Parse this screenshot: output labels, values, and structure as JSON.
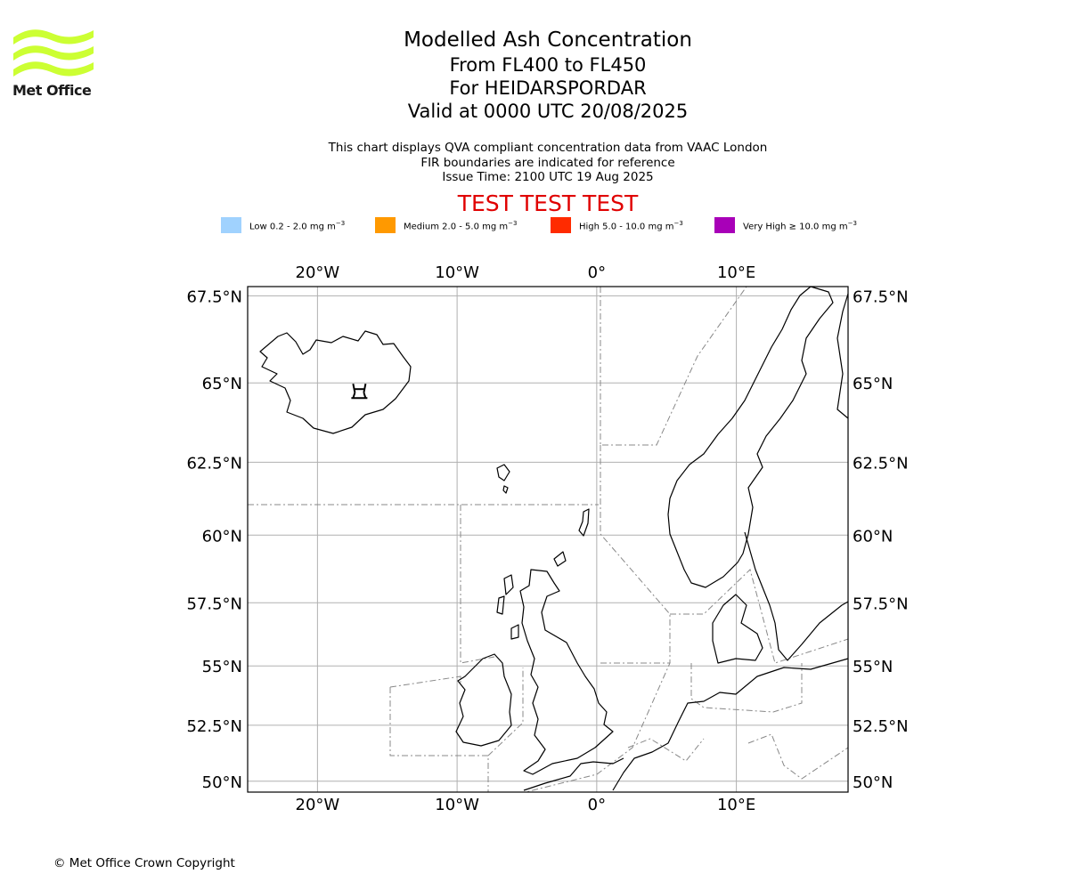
{
  "logo": {
    "text": "Met Office",
    "color": "#ccff33"
  },
  "title": {
    "line1": "Modelled Ash Concentration",
    "line2": "From FL400 to FL450",
    "line3": "For HEIDARSPORDAR",
    "line4": "Valid at 0000 UTC 20/08/2025"
  },
  "subtitle": {
    "line1": "This chart displays QVA compliant concentration data from VAAC London",
    "line2": "FIR boundaries are indicated for reference",
    "line3": "Issue Time: 2100 UTC 19 Aug 2025"
  },
  "test_banner": "TEST TEST TEST",
  "legend": [
    {
      "label": "Low 0.2 - 2.0 mg m",
      "unit_sup": "−3",
      "color": "#a0d2fe"
    },
    {
      "label": "Medium 2.0 - 5.0 mg m",
      "unit_sup": "−3",
      "color": "#ff9900"
    },
    {
      "label": "High 5.0 - 10.0 mg m",
      "unit_sup": "−3",
      "color": "#ff2b00"
    },
    {
      "label": "Very High  ≥  10.0 mg m",
      "unit_sup": "−3",
      "color": "#a800b8"
    }
  ],
  "map": {
    "lon_range": [
      -25,
      18
    ],
    "lat_range": [
      49.5,
      67.75
    ],
    "lon_ticks": [
      {
        "value": -20,
        "label": "20°W"
      },
      {
        "value": -10,
        "label": "10°W"
      },
      {
        "value": 0,
        "label": "0°"
      },
      {
        "value": 10,
        "label": "10°E"
      }
    ],
    "lat_ticks": [
      {
        "value": 67.5,
        "label": "67.5°N"
      },
      {
        "value": 65,
        "label": "65°N"
      },
      {
        "value": 62.5,
        "label": "62.5°N"
      },
      {
        "value": 60,
        "label": "60°N"
      },
      {
        "value": 57.5,
        "label": "57.5°N"
      },
      {
        "value": 55,
        "label": "55°N"
      },
      {
        "value": 52.5,
        "label": "52.5°N"
      },
      {
        "value": 50,
        "label": "50°N"
      }
    ],
    "grid": true,
    "volcano": {
      "name": "volcano-icon",
      "lon": -17,
      "lat": 64.65
    }
  },
  "copyright": "© Met Office Crown Copyright"
}
